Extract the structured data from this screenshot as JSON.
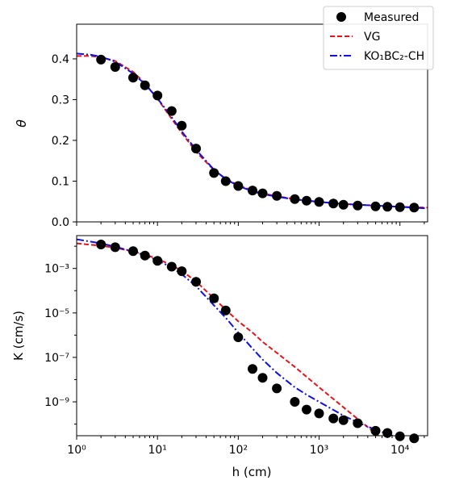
{
  "chart_data": [
    {
      "id": "top",
      "type": "scatter",
      "ylabel": "θ",
      "xscale": "log",
      "ylim": [
        0.0,
        0.485
      ],
      "yticks": [
        {
          "value": 0.0,
          "label": "0.0"
        },
        {
          "value": 0.1,
          "label": "0.1"
        },
        {
          "value": 0.2,
          "label": "0.2"
        },
        {
          "value": 0.3,
          "label": "0.3"
        },
        {
          "value": 0.4,
          "label": "0.4"
        }
      ],
      "series": [
        {
          "name": "Measured",
          "kind": "points",
          "color": "#000000",
          "x": [
            2,
            3,
            5,
            7,
            10,
            15,
            20,
            30,
            50,
            70,
            100,
            150,
            200,
            300,
            500,
            700,
            1000,
            1500,
            2000,
            3000,
            5000,
            7000,
            10000,
            15000
          ],
          "y": [
            0.398,
            0.38,
            0.354,
            0.335,
            0.31,
            0.272,
            0.236,
            0.18,
            0.12,
            0.1,
            0.088,
            0.077,
            0.07,
            0.064,
            0.056,
            0.052,
            0.049,
            0.045,
            0.042,
            0.04,
            0.038,
            0.037,
            0.036,
            0.035
          ]
        },
        {
          "name": "VG",
          "kind": "line",
          "color": "#e8141c",
          "x": [
            1,
            1.5,
            2,
            3,
            5,
            7,
            10,
            15,
            20,
            30,
            50,
            70,
            100,
            150,
            200,
            300,
            500,
            1000,
            2000,
            5000,
            10000,
            22000
          ],
          "y": [
            0.407,
            0.407,
            0.404,
            0.395,
            0.368,
            0.34,
            0.302,
            0.253,
            0.218,
            0.172,
            0.127,
            0.106,
            0.09,
            0.077,
            0.07,
            0.063,
            0.056,
            0.049,
            0.044,
            0.04,
            0.037,
            0.035
          ]
        },
        {
          "name": "KO₁BC₂-CH",
          "kind": "line",
          "color": "#1010e0",
          "x": [
            1,
            1.5,
            2,
            3,
            5,
            7,
            10,
            15,
            20,
            30,
            50,
            70,
            100,
            150,
            200,
            300,
            500,
            1000,
            2000,
            5000,
            10000,
            22000
          ],
          "y": [
            0.413,
            0.41,
            0.405,
            0.393,
            0.364,
            0.338,
            0.303,
            0.257,
            0.222,
            0.177,
            0.128,
            0.105,
            0.088,
            0.075,
            0.068,
            0.062,
            0.055,
            0.049,
            0.044,
            0.04,
            0.037,
            0.033
          ]
        }
      ]
    },
    {
      "id": "bottom",
      "type": "scatter",
      "xlabel": "h (cm)",
      "ylabel": "K (cm/s)",
      "xscale": "log",
      "yscale": "log",
      "ylim": [
        3e-11,
        0.03
      ],
      "xlim": [
        1,
        22000
      ],
      "yticks": [
        {
          "value": 0.001,
          "label": "10⁻³"
        },
        {
          "value": 1e-05,
          "label": "10⁻⁵"
        },
        {
          "value": 1e-07,
          "label": "10⁻⁷"
        },
        {
          "value": 1e-09,
          "label": "10⁻⁹"
        }
      ],
      "xticks": [
        {
          "value": 1,
          "label": "10⁰"
        },
        {
          "value": 10,
          "label": "10¹"
        },
        {
          "value": 100,
          "label": "10²"
        },
        {
          "value": 1000,
          "label": "10³"
        },
        {
          "value": 10000,
          "label": "10⁴"
        }
      ],
      "series": [
        {
          "name": "Measured",
          "kind": "points",
          "color": "#000000",
          "x": [
            2,
            3,
            5,
            7,
            10,
            15,
            20,
            30,
            50,
            70,
            100,
            150,
            200,
            300,
            500,
            700,
            1000,
            1500,
            2000,
            3000,
            5000,
            7000,
            10000,
            15000
          ],
          "y": [
            0.012,
            0.009,
            0.006,
            0.0038,
            0.0022,
            0.0012,
            0.00075,
            0.00025,
            4.5e-05,
            1.3e-05,
            8e-07,
            3e-08,
            1.2e-08,
            4e-09,
            1e-09,
            4.5e-10,
            3e-10,
            1.8e-10,
            1.5e-10,
            1.1e-10,
            5e-11,
            4e-11,
            2.8e-11,
            2.3e-11
          ]
        },
        {
          "name": "VG",
          "kind": "line",
          "color": "#e8141c",
          "x": [
            1,
            2,
            3,
            5,
            7,
            10,
            15,
            20,
            30,
            50,
            70,
            100,
            150,
            200,
            300,
            500,
            1000,
            2000,
            3000,
            5000,
            8000
          ],
          "y": [
            0.0135,
            0.0105,
            0.0085,
            0.0058,
            0.0042,
            0.0027,
            0.0014,
            0.00078,
            0.00026,
            4.5e-05,
            1.4e-05,
            4.2e-06,
            1.3e-06,
            5e-07,
            1.6e-07,
            3.7e-08,
            4.5e-09,
            5.7e-10,
            1.7e-10,
            3.8e-11,
            1e-11
          ]
        },
        {
          "name": "KO₁BC₂-CH",
          "kind": "line",
          "color": "#1010e0",
          "x": [
            1,
            2,
            3,
            5,
            7,
            10,
            15,
            20,
            30,
            50,
            70,
            100,
            150,
            200,
            300,
            500,
            700,
            1000,
            2000,
            3000,
            5000,
            10000,
            22000
          ],
          "y": [
            0.0205,
            0.0135,
            0.0095,
            0.0058,
            0.0039,
            0.0023,
            0.0011,
            0.00055,
            0.00016,
            2.2e-05,
            6e-06,
            1.3e-06,
            2.5e-07,
            8e-08,
            2e-08,
            4.5e-09,
            2.1e-09,
            1e-09,
            2.4e-10,
            1.2e-10,
            5.5e-11,
            2.3e-11,
            8.5e-12
          ]
        }
      ]
    }
  ],
  "legend": {
    "placement": "top-right",
    "items": [
      {
        "label": "Measured",
        "kind": "marker",
        "color": "#000000"
      },
      {
        "label": "VG",
        "kind": "dashed",
        "color": "#e8141c"
      },
      {
        "label": "KO₁BC₂-CH",
        "kind": "dashdot",
        "color": "#1010e0"
      }
    ]
  }
}
